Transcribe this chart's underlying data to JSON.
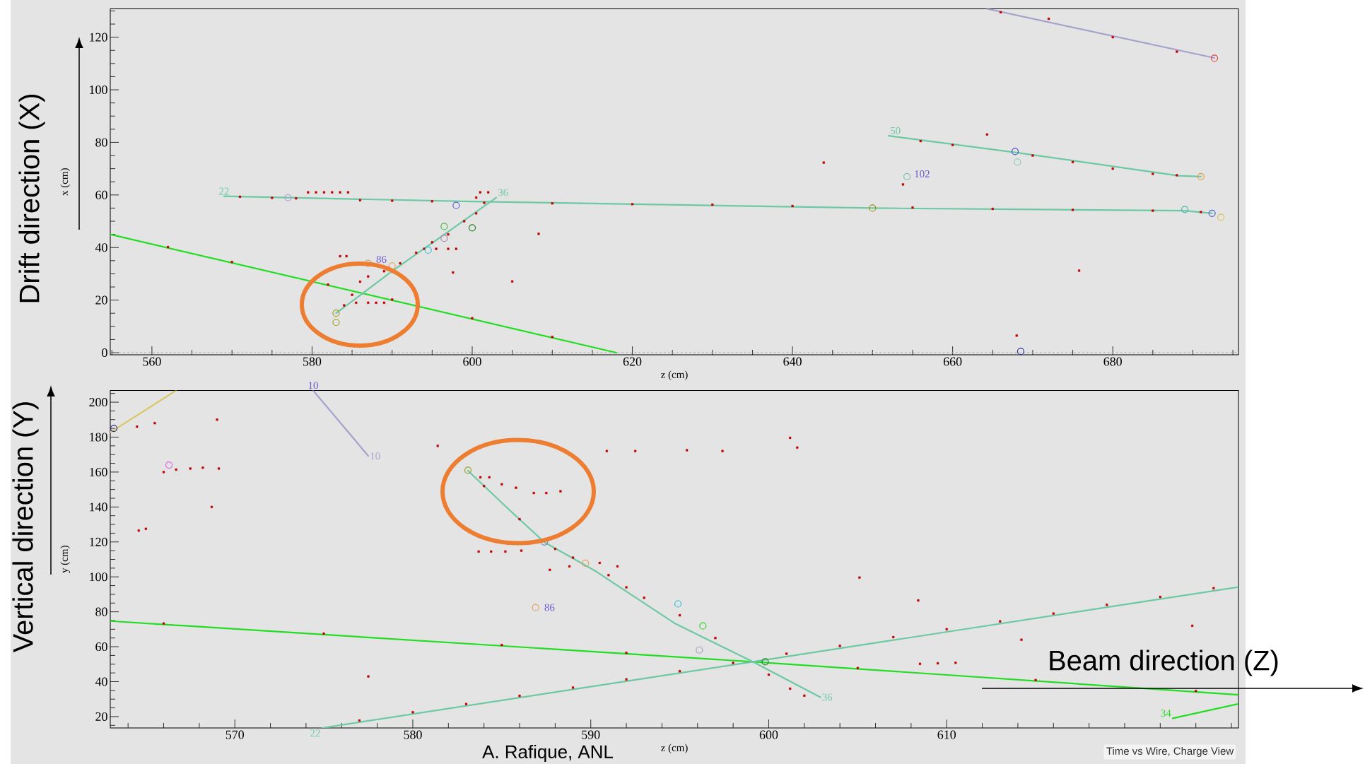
{
  "chart_data": [
    {
      "type": "line",
      "xlabel": "z (cm)",
      "ylabel": "x (cm)",
      "xlim": [
        554.8,
        695.7
      ],
      "ylim": [
        -0.8,
        130.8
      ],
      "xticks": [
        {
          "value": 555,
          "label": null
        },
        560,
        {
          "value": 565,
          "label": null
        },
        {
          "value": 570,
          "label": null
        },
        {
          "value": 575,
          "label": null
        },
        580,
        {
          "value": 585,
          "label": null
        },
        {
          "value": 590,
          "label": null
        },
        {
          "value": 595,
          "label": null
        },
        600,
        {
          "value": 605,
          "label": null
        },
        {
          "value": 610,
          "label": null
        },
        {
          "value": 615,
          "label": null
        },
        620,
        {
          "value": 625,
          "label": null
        },
        {
          "value": 630,
          "label": null
        },
        {
          "value": 635,
          "label": null
        },
        640,
        {
          "value": 645,
          "label": null
        },
        {
          "value": 650,
          "label": null
        },
        {
          "value": 655,
          "label": null
        },
        660,
        {
          "value": 665,
          "label": null
        },
        {
          "value": 670,
          "label": null
        },
        {
          "value": 675,
          "label": null
        },
        680,
        {
          "value": 685,
          "label": null
        },
        {
          "value": 690,
          "label": null
        },
        {
          "value": 695,
          "label": null
        }
      ],
      "yticks": [
        0,
        {
          "value": 5,
          "label": null
        },
        {
          "value": 10,
          "label": null
        },
        {
          "value": 15,
          "label": null
        },
        20,
        {
          "value": 25,
          "label": null
        },
        {
          "value": 30,
          "label": null
        },
        {
          "value": 35,
          "label": null
        },
        40,
        {
          "value": 45,
          "label": null
        },
        {
          "value": 50,
          "label": null
        },
        {
          "value": 55,
          "label": null
        },
        60,
        {
          "value": 65,
          "label": null
        },
        {
          "value": 70,
          "label": null
        },
        {
          "value": 75,
          "label": null
        },
        80,
        {
          "value": 85,
          "label": null
        },
        {
          "value": 90,
          "label": null
        },
        {
          "value": 95,
          "label": null
        },
        100,
        {
          "value": 105,
          "label": null
        },
        {
          "value": 110,
          "label": null
        },
        {
          "value": 115,
          "label": null
        },
        120,
        {
          "value": 125,
          "label": null
        },
        {
          "value": 130,
          "label": null
        }
      ],
      "ref_lines": [
        {
          "axis": "y",
          "value": 0,
          "color": "#a8a8a8",
          "line_style": "dashed"
        }
      ],
      "series": [
        {
          "color": "#22dd22",
          "marker": "none",
          "line_style": "solid",
          "x": [
            554.8,
            618
          ],
          "values": [
            45,
            0
          ]
        },
        {
          "name": "22",
          "color": "#6cc9a3",
          "marker": "none",
          "line_style": "solid",
          "x": [
            569,
            600,
            650,
            689,
            692.4
          ],
          "values": [
            59.5,
            57.5,
            55,
            54,
            53
          ]
        },
        {
          "color": "#a3a3cc",
          "marker": "none",
          "line_style": "solid",
          "x": [
            664.3,
            692.7
          ],
          "values": [
            130.8,
            112.1
          ]
        },
        {
          "name": "36",
          "color": "#6cc9a3",
          "marker": "none",
          "line_style": "solid",
          "x": [
            583,
            590,
            597,
            603
          ],
          "values": [
            15,
            31,
            46,
            59
          ]
        },
        {
          "name": "50",
          "color": "#6cc9a3",
          "marker": "none",
          "line_style": "solid",
          "x": [
            652,
            667.8,
            688.2,
            691
          ],
          "values": [
            82.5,
            76.2,
            67.3,
            67
          ]
        },
        {
          "type": "scatter",
          "color": "#c00000",
          "marker": "square",
          "x": [
            579.5,
            580.5,
            581.5,
            582.5,
            583.5,
            584.5,
            571,
            575,
            578,
            586,
            590,
            595,
            610,
            620,
            630,
            640,
            655,
            665,
            675,
            685,
            691,
            600.5,
            601,
            602,
            601.5,
            584,
            585,
            586,
            587,
            589,
            591,
            593,
            595,
            597,
            599,
            600.5,
            587,
            588,
            589,
            585.5,
            583.5,
            584.3,
            594,
            595.5,
            597,
            598,
            597.6,
            605,
            608.3,
            643.9,
            653.8,
            664.3,
            675.8,
            668,
            656,
            660,
            670,
            675,
            680,
            685,
            688,
            666,
            672,
            680,
            688,
            562,
            570,
            582,
            590,
            600,
            610
          ],
          "values": [
            61,
            61,
            61,
            61,
            61,
            61,
            59.3,
            58.9,
            58.7,
            58,
            57.8,
            57.6,
            56.8,
            56.5,
            56.3,
            55.8,
            55.2,
            54.7,
            54.3,
            54,
            53.5,
            59,
            61,
            61,
            57,
            18,
            22,
            27,
            29,
            31,
            34,
            38,
            42,
            45,
            50,
            53,
            19,
            19,
            19,
            19,
            36.7,
            36.7,
            39.5,
            39.5,
            39.5,
            39.5,
            30.5,
            27.1,
            45.2,
            72.3,
            64,
            83,
            31.2,
            6.5,
            80.5,
            79,
            75,
            72.5,
            70,
            68,
            67.5,
            129.5,
            127,
            120,
            114.5,
            40.2,
            34.5,
            25.9,
            20.2,
            13.1,
            6
          ]
        },
        {
          "type": "scatter",
          "marker": "circle",
          "colors": [
            "#b0a0d8",
            "#6060d0",
            "#a0a020",
            "#a0a020",
            "#40c040",
            "#208020",
            "#30c0d0",
            "#b080b0",
            "#e0a060",
            "#e0a060",
            "#a09010",
            "#80c0b0",
            "#5050d0",
            "#90d0b0",
            "#e0a040",
            "#50b0a0",
            "#5060d0",
            "#e0c050",
            "#e04040",
            "#3030a0"
          ],
          "x": [
            577,
            598,
            583,
            583,
            596.5,
            600,
            594.5,
            596.5,
            587,
            590,
            650,
            654.3,
            667.8,
            668.1,
            691,
            689,
            692.4,
            693.5,
            692.7,
            668.5
          ],
          "values": [
            59,
            56,
            15,
            11.5,
            48,
            47.5,
            39,
            43.5,
            34,
            33,
            55,
            67,
            76.5,
            72.5,
            67,
            54.5,
            53,
            51.5,
            112,
            0.5
          ]
        }
      ],
      "annotations": [
        "102",
        "86",
        "Drift direction (X)"
      ]
    },
    {
      "type": "line",
      "xlabel": "z (cm)",
      "ylabel": "y (cm)",
      "xlim": [
        563,
        626.4
      ],
      "ylim": [
        13.5,
        206.7
      ],
      "xticks": [
        {
          "value": 564,
          "label": null
        },
        {
          "value": 566,
          "label": null
        },
        {
          "value": 568,
          "label": null
        },
        570,
        {
          "value": 572,
          "label": null
        },
        {
          "value": 574,
          "label": null
        },
        {
          "value": 576,
          "label": null
        },
        {
          "value": 578,
          "label": null
        },
        580,
        {
          "value": 582,
          "label": null
        },
        {
          "value": 584,
          "label": null
        },
        {
          "value": 586,
          "label": null
        },
        {
          "value": 588,
          "label": null
        },
        590,
        {
          "value": 592,
          "label": null
        },
        {
          "value": 594,
          "label": null
        },
        {
          "value": 596,
          "label": null
        },
        {
          "value": 598,
          "label": null
        },
        600,
        {
          "value": 602,
          "label": null
        },
        {
          "value": 604,
          "label": null
        },
        {
          "value": 606,
          "label": null
        },
        {
          "value": 608,
          "label": null
        },
        610,
        {
          "value": 612,
          "label": null
        },
        {
          "value": 614,
          "label": null
        },
        {
          "value": 616,
          "label": null
        },
        {
          "value": 618,
          "label": null
        },
        {
          "value": 620,
          "label": null
        },
        {
          "value": 622,
          "label": null
        },
        {
          "value": 624,
          "label": null
        },
        {
          "value": 626,
          "label": null
        }
      ],
      "yticks": [
        {
          "value": 15,
          "label": null
        },
        20,
        {
          "value": 25,
          "label": null
        },
        {
          "value": 30,
          "label": null
        },
        {
          "value": 35,
          "label": null
        },
        40,
        {
          "value": 45,
          "label": null
        },
        {
          "value": 50,
          "label": null
        },
        {
          "value": 55,
          "label": null
        },
        60,
        {
          "value": 65,
          "label": null
        },
        {
          "value": 70,
          "label": null
        },
        {
          "value": 75,
          "label": null
        },
        80,
        {
          "value": 85,
          "label": null
        },
        {
          "value": 90,
          "label": null
        },
        {
          "value": 95,
          "label": null
        },
        100,
        {
          "value": 105,
          "label": null
        },
        {
          "value": 110,
          "label": null
        },
        {
          "value": 115,
          "label": null
        },
        120,
        {
          "value": 125,
          "label": null
        },
        {
          "value": 130,
          "label": null
        },
        {
          "value": 135,
          "label": null
        },
        140,
        {
          "value": 145,
          "label": null
        },
        {
          "value": 150,
          "label": null
        },
        {
          "value": 155,
          "label": null
        },
        160,
        {
          "value": 165,
          "label": null
        },
        {
          "value": 170,
          "label": null
        },
        {
          "value": 175,
          "label": null
        },
        180,
        {
          "value": 185,
          "label": null
        },
        {
          "value": 190,
          "label": null
        },
        {
          "value": 195,
          "label": null
        },
        200,
        {
          "value": 205,
          "label": null
        }
      ],
      "series": [
        {
          "color": "#22dd22",
          "marker": "none",
          "line_style": "solid",
          "x": [
            563,
            599.1,
            626.4
          ],
          "values": [
            74.7,
            51.4,
            32.5
          ]
        },
        {
          "color": "#d9c86a",
          "marker": "none",
          "line_style": "solid",
          "x": [
            563,
            566.7
          ],
          "values": [
            182.7,
            206.7
          ]
        },
        {
          "name": "22",
          "color": "#6cc9a3",
          "marker": "none",
          "line_style": "solid",
          "x": [
            574.9,
            599.1,
            626.4
          ],
          "values": [
            13.5,
            51.4,
            94.2
          ]
        },
        {
          "name": "10",
          "color": "#a3a3cc",
          "marker": "none",
          "line_style": "solid",
          "x": [
            574.4,
            577.5
          ],
          "values": [
            206.7,
            169.2
          ]
        },
        {
          "name": "36",
          "color": "#6cc9a3",
          "marker": "none",
          "line_style": "solid",
          "x": [
            583.1,
            585.5,
            587.4,
            590.3,
            594.7,
            599.1,
            602.9
          ],
          "values": [
            160.8,
            137.6,
            119.8,
            103.1,
            73.5,
            51.4,
            31.1
          ]
        },
        {
          "name": "34",
          "color": "#22dd22",
          "marker": "none",
          "line_style": "solid",
          "x": [
            622.7,
            626.4
          ],
          "values": [
            19,
            27.3
          ]
        },
        {
          "type": "scatter",
          "color": "#c00000",
          "marker": "square",
          "x": [
            566.7,
            567.5,
            568.2,
            569.1,
            566,
            564.6,
            565,
            568.7,
            569,
            565.5,
            564.5,
            577.5,
            581.4,
            590.9,
            592.5,
            595.4,
            597.4,
            601.2,
            601.6,
            605.1,
            608.4,
            583.7,
            584.4,
            585.2,
            586.1,
            583.8,
            584.3,
            585,
            585.8,
            586.8,
            587.5,
            588.3,
            584,
            586,
            588,
            589,
            591,
            592,
            593,
            595,
            597,
            600,
            601.2,
            602,
            587.7,
            588.8,
            590.5,
            591.5,
            577,
            580,
            583,
            586,
            589,
            592,
            595,
            598,
            601,
            604,
            607,
            610,
            613,
            616,
            619,
            622,
            625,
            566,
            575,
            585,
            592,
            605,
            615,
            624,
            608.5,
            609.5,
            610.5,
            623.8,
            614.2
          ],
          "values": [
            161.4,
            162,
            162.5,
            162,
            160,
            126.5,
            127.5,
            140,
            190,
            188,
            186,
            43,
            175,
            172,
            172,
            172.5,
            172,
            179.6,
            174,
            99.6,
            86.5,
            114.5,
            114.5,
            114.5,
            115,
            157,
            157,
            153,
            151,
            148,
            148,
            149,
            152,
            133,
            116,
            111,
            101,
            94,
            88,
            78,
            65,
            44,
            36,
            32,
            104,
            106,
            108,
            106,
            17.8,
            22.5,
            27.2,
            31.9,
            36.6,
            41.3,
            46,
            50.7,
            56,
            60.5,
            65.5,
            70,
            74.5,
            79,
            84,
            88.5,
            93.5,
            73.3,
            67.5,
            61,
            56.5,
            47.8,
            40.9,
            34.7,
            50.2,
            50.5,
            50.8,
            72,
            64
          ]
        },
        {
          "type": "scatter",
          "marker": "circle",
          "colors": [
            "#303090",
            "#e060e0",
            "#90a020",
            "#7080c0",
            "#e0a060",
            "#e0a060",
            "#30c0d0",
            "#30d030",
            "#a0a0c0",
            "#208020"
          ],
          "x": [
            563.2,
            566.3,
            583.1,
            587.4,
            589.7,
            586.9,
            594.9,
            596.3,
            596.1,
            599.8
          ],
          "values": [
            185,
            164,
            161,
            120,
            107.8,
            82.4,
            84.5,
            71.9,
            58.1,
            51.4
          ]
        }
      ],
      "annotations": [
        "86",
        "10",
        "Vertical direction (Y)",
        "Beam direction (Z)",
        "A. Rafique, ANL",
        "Time vs Wire, Charge View"
      ]
    }
  ]
}
